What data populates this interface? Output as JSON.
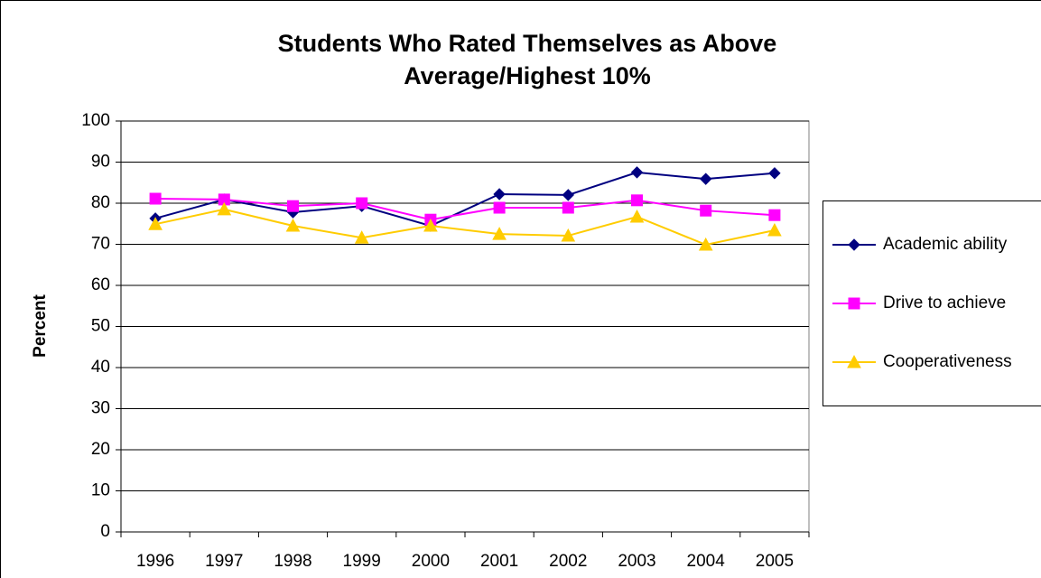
{
  "chart_data": {
    "type": "line",
    "title": "Students Who Rated Themselves as Above Average/Highest 10%",
    "y_label": "Percent",
    "categories": [
      "1996",
      "1997",
      "1998",
      "1999",
      "2000",
      "2001",
      "2002",
      "2003",
      "2004",
      "2005"
    ],
    "series": [
      {
        "name": "Academic ability",
        "color": "#000080",
        "marker": "diamond",
        "values": [
          76.3,
          80.9,
          77.8,
          79.3,
          74.5,
          82.2,
          82.0,
          87.5,
          85.9,
          87.3
        ]
      },
      {
        "name": "Drive to achieve",
        "color": "#ff00ff",
        "marker": "square",
        "values": [
          81.1,
          80.9,
          79.3,
          80.0,
          76.0,
          78.9,
          78.9,
          80.7,
          78.2,
          77.1
        ]
      },
      {
        "name": "Cooperativeness",
        "color": "#ffcc00",
        "marker": "triangle",
        "values": [
          74.9,
          78.5,
          74.5,
          71.6,
          74.5,
          72.5,
          72.1,
          76.7,
          69.9,
          73.4
        ]
      }
    ],
    "ylim": [
      0,
      100
    ],
    "yticks": [
      0,
      10,
      20,
      30,
      40,
      50,
      60,
      70,
      80,
      90,
      100
    ],
    "grid": true,
    "legend": "right"
  }
}
